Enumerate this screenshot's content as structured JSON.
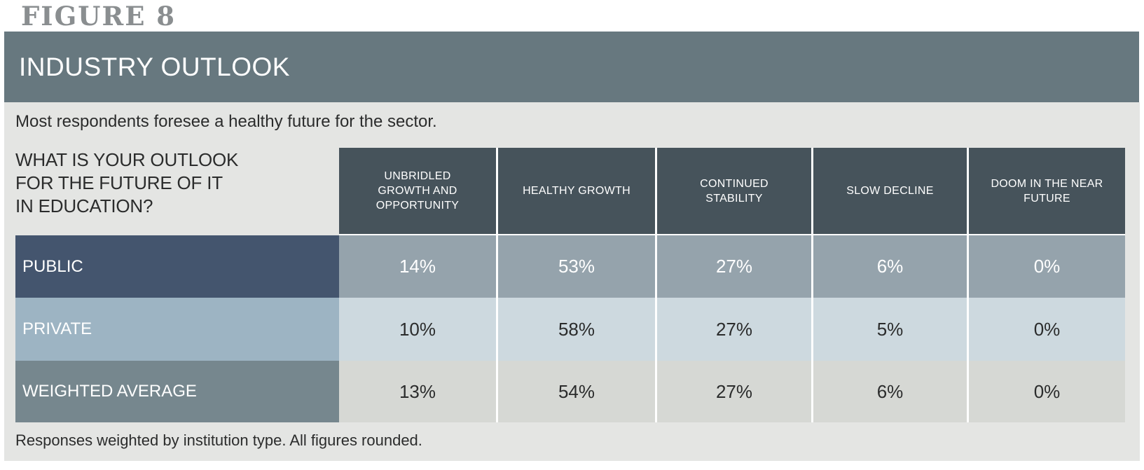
{
  "figure_label": "FIGURE 8",
  "section": {
    "title": "INDUSTRY OUTLOOK"
  },
  "intro": "Most respondents foresee a healthy future for the sector.",
  "question": {
    "full": "WHAT IS YOUR OUTLOOK FOR THE FUTURE OF IT IN EDUCATION?",
    "lines": [
      "WHAT IS YOUR OUTLOOK",
      "FOR THE FUTURE OF IT",
      "IN EDUCATION?"
    ]
  },
  "footnote": "Responses weighted by institution type. All figures rounded.",
  "colors": {
    "title_band": "#67787f",
    "panel_background": "#e4e5e3",
    "header_cell": "#46535b",
    "public_label": "#44556e",
    "public_cell": "#95a3ac",
    "private_label": "#9db4c3",
    "private_cell": "#cdd9df",
    "weighted_label": "#76878e",
    "weighted_cell": "#d6d8d4",
    "figure_label_text": "#8a8e90",
    "dark_text": "#2b2c2c",
    "light_text": "#ffffff"
  },
  "chart_data": {
    "type": "table",
    "title": "INDUSTRY OUTLOOK",
    "subtitle": "Most respondents foresee a healthy future for the sector.",
    "question": "WHAT IS YOUR OUTLOOK FOR THE FUTURE OF IT IN EDUCATION?",
    "columns": [
      "UNBRIDLED GROWTH AND OPPORTUNITY",
      "HEALTHY GROWTH",
      "CONTINUED STABILITY",
      "SLOW DECLINE",
      "DOOM IN THE NEAR FUTURE"
    ],
    "rows": [
      {
        "label": "PUBLIC",
        "values": [
          "14%",
          "53%",
          "27%",
          "6%",
          "0%"
        ]
      },
      {
        "label": "PRIVATE",
        "values": [
          "10%",
          "58%",
          "27%",
          "5%",
          "0%"
        ]
      },
      {
        "label": "WEIGHTED AVERAGE",
        "values": [
          "13%",
          "54%",
          "27%",
          "6%",
          "0%"
        ]
      }
    ],
    "note": "Responses weighted by institution type. All figures rounded."
  }
}
